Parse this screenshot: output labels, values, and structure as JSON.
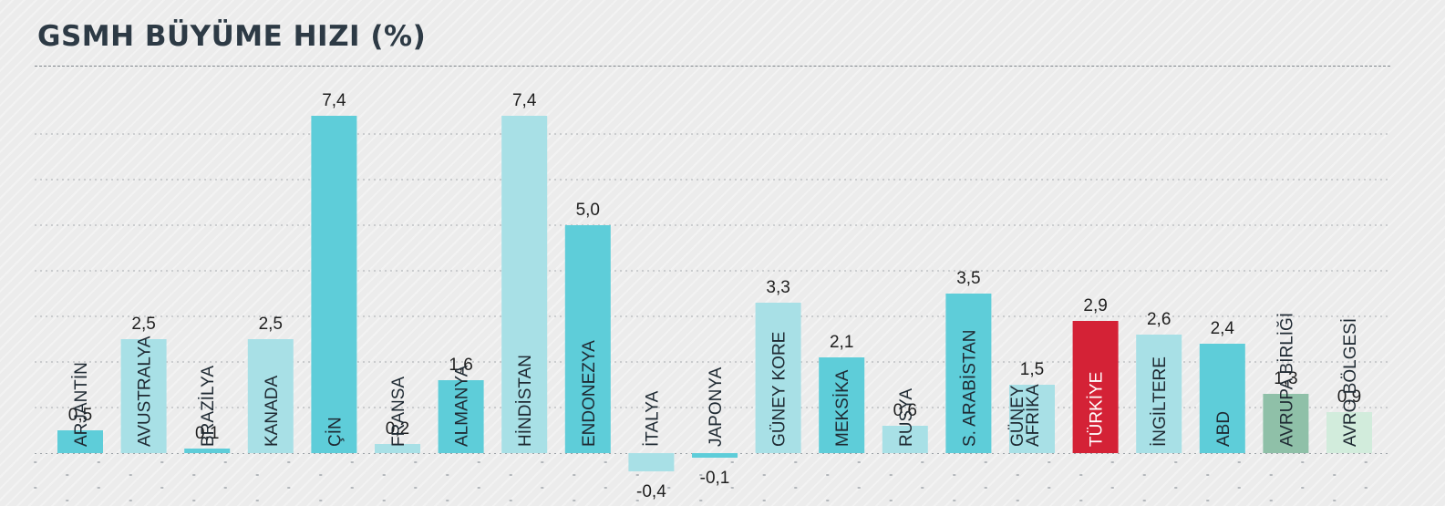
{
  "chart_data": {
    "type": "bar",
    "title": "GSMH BÜYÜME HIZI (%)",
    "xlabel": "",
    "ylabel": "",
    "ylim": [
      -0.6,
      8.0
    ],
    "grid": true,
    "categories": [
      "ARJANTİN",
      "AVUSTRALYA",
      "BRAZİLYA",
      "KANADA",
      "ÇİN",
      "FRANSA",
      "ALMANYA",
      "HİNDİSTAN",
      "ENDONEZYA",
      "İTALYA",
      "JAPONYA",
      "GÜNEY KORE",
      "MEKSİKA",
      "RUSYA",
      "S. ARABİSTAN",
      "GÜNEY AFRİKA",
      "TÜRKİYE",
      "İNGİLTERE",
      "ABD",
      "AVRUPA BİRLİĞİ",
      "AVRO BÖLGESİ"
    ],
    "values": [
      0.5,
      2.5,
      0.1,
      2.5,
      7.4,
      0.2,
      1.6,
      7.4,
      5.0,
      -0.4,
      -0.1,
      3.3,
      2.1,
      0.6,
      3.5,
      1.5,
      2.9,
      2.6,
      2.4,
      1.3,
      0.9
    ],
    "value_labels": [
      "0,5",
      "2,5",
      "0,1",
      "2,5",
      "7,4",
      "0,2",
      "1,6",
      "7,4",
      "5,0",
      "-0,4",
      "-0,1",
      "3,3",
      "2,1",
      "0,6",
      "3,5",
      "1,5",
      "2,9",
      "2,6",
      "2,4",
      "1,3",
      "0,9"
    ],
    "bar_colors": [
      "#5ecdd9",
      "#a8e0e6",
      "#5ecdd9",
      "#a8e0e6",
      "#5ecdd9",
      "#a8e0e6",
      "#5ecdd9",
      "#a8e0e6",
      "#5ecdd9",
      "#a8e0e6",
      "#5ecdd9",
      "#a8e0e6",
      "#5ecdd9",
      "#a8e0e6",
      "#5ecdd9",
      "#a8e0e6",
      "#d42236",
      "#a8e0e6",
      "#5ecdd9",
      "#8fc0a8",
      "#d2ecdc"
    ],
    "label_colors": [
      "dark",
      "dark",
      "dark",
      "dark",
      "dark",
      "dark",
      "dark",
      "dark",
      "dark",
      "dark",
      "dark",
      "dark",
      "dark",
      "dark",
      "dark",
      "dark",
      "light",
      "dark",
      "dark",
      "dark",
      "dark"
    ]
  }
}
